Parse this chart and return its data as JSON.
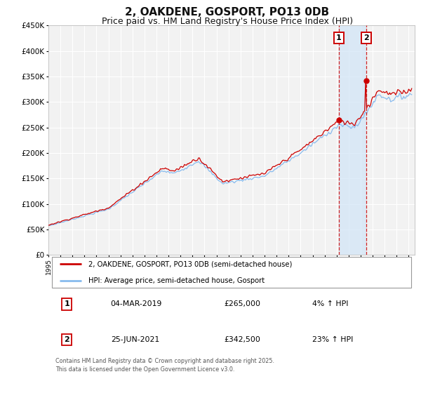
{
  "title": "2, OAKDENE, GOSPORT, PO13 0DB",
  "subtitle": "Price paid vs. HM Land Registry's House Price Index (HPI)",
  "title_fontsize": 11,
  "subtitle_fontsize": 9,
  "ylim": [
    0,
    450000
  ],
  "yticks": [
    0,
    50000,
    100000,
    150000,
    200000,
    250000,
    300000,
    350000,
    400000,
    450000
  ],
  "xlim_start": 1995.0,
  "xlim_end": 2025.5,
  "xticks": [
    1995,
    1996,
    1997,
    1998,
    1999,
    2000,
    2001,
    2002,
    2003,
    2004,
    2005,
    2006,
    2007,
    2008,
    2009,
    2010,
    2011,
    2012,
    2013,
    2014,
    2015,
    2016,
    2017,
    2018,
    2019,
    2020,
    2021,
    2022,
    2023,
    2024,
    2025
  ],
  "background_color": "#ffffff",
  "plot_bg_color": "#f2f2f2",
  "grid_color": "#ffffff",
  "red_line_color": "#cc0000",
  "blue_line_color": "#88bbee",
  "sale1_x": 2019.167,
  "sale1_y": 265000,
  "sale2_x": 2021.458,
  "sale2_y": 342500,
  "shade_color": "#d0e4f7",
  "legend_label_red": "2, OAKDENE, GOSPORT, PO13 0DB (semi-detached house)",
  "legend_label_blue": "HPI: Average price, semi-detached house, Gosport",
  "table_row1_num": "1",
  "table_row1_date": "04-MAR-2019",
  "table_row1_price": "£265,000",
  "table_row1_hpi": "4% ↑ HPI",
  "table_row2_num": "2",
  "table_row2_date": "25-JUN-2021",
  "table_row2_price": "£342,500",
  "table_row2_hpi": "23% ↑ HPI",
  "footnote": "Contains HM Land Registry data © Crown copyright and database right 2025.\nThis data is licensed under the Open Government Licence v3.0."
}
